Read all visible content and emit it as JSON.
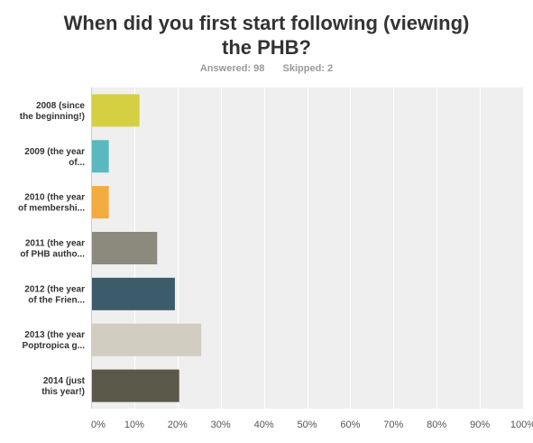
{
  "header": {
    "title_line1": "When did you first start following (viewing)",
    "title_line2": "the PHB?",
    "answered_label": "Answered: 98",
    "skipped_label": "Skipped: 2"
  },
  "chart_data": {
    "type": "bar",
    "orientation": "horizontal",
    "title": "When did you first start following (viewing) the PHB?",
    "categories": [
      [
        "2008 (since",
        "the beginning!)"
      ],
      [
        "2009 (the year",
        "of..."
      ],
      [
        "2010 (the year",
        "of membershi..."
      ],
      [
        "2011 (the year",
        "of PHB autho..."
      ],
      [
        "2012 (the year",
        "of the Frien..."
      ],
      [
        "2013 (the year",
        "Poptropica g..."
      ],
      [
        "2014 (just",
        "this year!)"
      ]
    ],
    "values": [
      11.2,
      4.1,
      4.1,
      15.3,
      19.4,
      25.5,
      20.4
    ],
    "colors": [
      "#d5d042",
      "#5ab9be",
      "#f3ac3f",
      "#8c8a7c",
      "#3c5c6b",
      "#d1cdc1",
      "#5a5848"
    ],
    "xlim": [
      0,
      100
    ],
    "xticks": [
      "0%",
      "10%",
      "20%",
      "30%",
      "40%",
      "50%",
      "60%",
      "70%",
      "80%",
      "90%",
      "100%"
    ],
    "grid": true,
    "plot_background": "#efefef",
    "gridline_color": "#ffffff"
  }
}
